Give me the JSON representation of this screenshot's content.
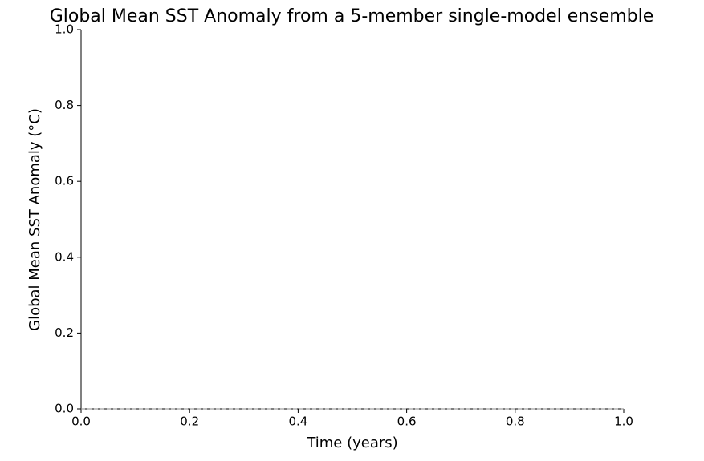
{
  "chart_data": {
    "type": "line",
    "title": "Global Mean SST Anomaly from a 5-member single-model ensemble",
    "xlabel": "Time (years)",
    "ylabel": "Global Mean SST Anomaly (°C)",
    "series": [],
    "xlim": [
      0,
      1
    ],
    "ylim": [
      0,
      1
    ],
    "xticks": [
      {
        "value": 0,
        "label": "0.0"
      },
      0.2,
      0.4,
      0.6,
      0.8,
      {
        "value": 1,
        "label": "1.0"
      }
    ],
    "yticks": [
      {
        "value": 0,
        "label": "0.0"
      },
      0.2,
      0.4,
      0.6,
      0.8,
      {
        "value": 1,
        "label": "1.0"
      }
    ],
    "hlines": [
      0
    ],
    "grid": false
  }
}
